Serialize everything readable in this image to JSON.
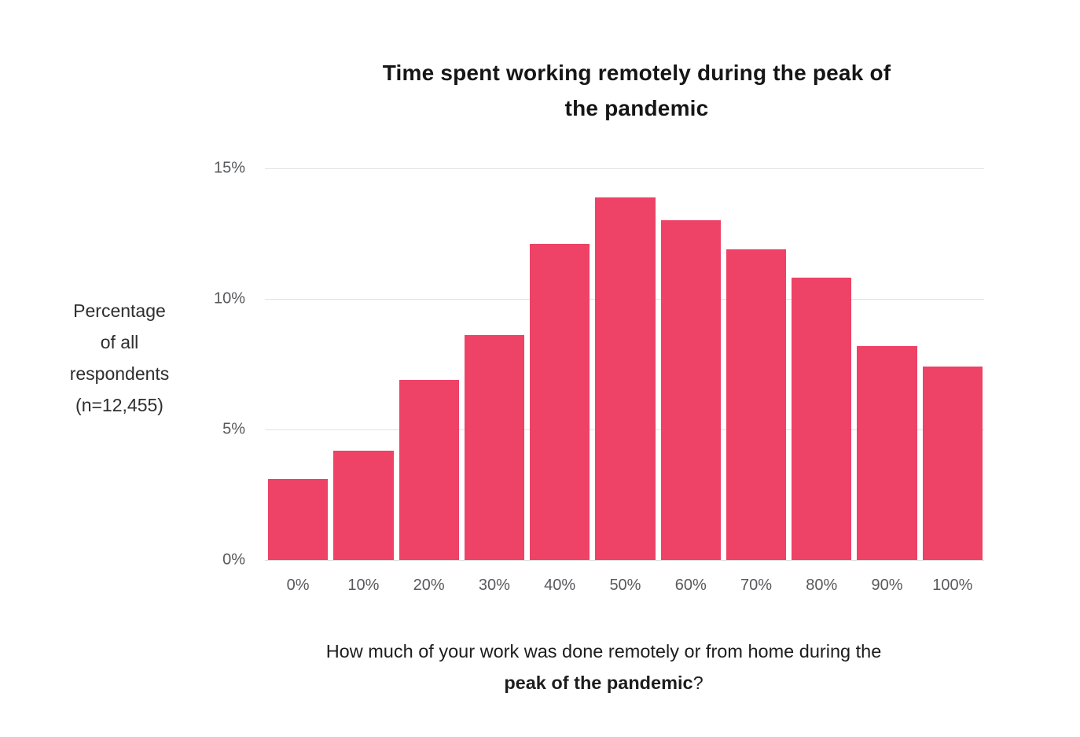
{
  "chart_data": {
    "type": "bar",
    "title": "Time spent working remotely during the peak of the pandemic",
    "title_lines": [
      "Time spent working remotely during the peak of",
      "the pandemic"
    ],
    "categories": [
      "0%",
      "10%",
      "20%",
      "30%",
      "40%",
      "50%",
      "60%",
      "70%",
      "80%",
      "90%",
      "100%"
    ],
    "values": [
      3.1,
      4.2,
      6.9,
      8.6,
      12.1,
      13.9,
      13.0,
      11.9,
      10.8,
      8.2,
      7.4
    ],
    "ylabel": "Percentage of all respondents (n=12,455)",
    "ylabel_lines": [
      "Percentage",
      "of all",
      "respondents",
      "(n=12,455)"
    ],
    "xlabel": "",
    "ylim": [
      0,
      15
    ],
    "yticks": [
      {
        "label": "0%",
        "value": 0
      },
      {
        "label": "5%",
        "value": 5
      },
      {
        "label": "10%",
        "value": 10
      },
      {
        "label": "15%",
        "value": 15
      }
    ],
    "grid": true,
    "legend": "none",
    "bar_color": "#EE4266",
    "question": {
      "line1": "How much of your work was done remotely or from home during the",
      "line2_bold": "peak of the pandemic",
      "line2_suffix": "?"
    }
  },
  "colors": {
    "background": "#ffffff",
    "bar": "#EE4266",
    "title_text": "#161616",
    "axis_label_text": "#2e2e2e",
    "tick_text": "#58595c",
    "gridline": "#e3e3e3"
  }
}
